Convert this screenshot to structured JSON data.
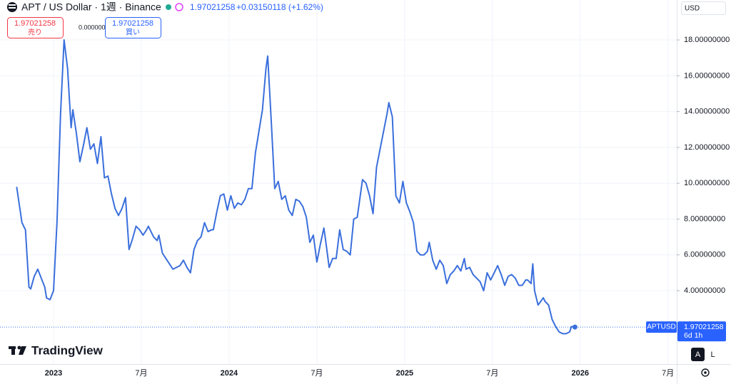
{
  "header": {
    "title": "APT / US Dollar · 1週 · Binance",
    "price": "1.97021258",
    "change": "+0.03150118 (+1.62%)",
    "sell_price": "1.97021258",
    "sell_label": "売り",
    "spread": "0.00000000",
    "buy_price": "1.97021258",
    "buy_label": "買い"
  },
  "toolbar": {
    "currency": "USD",
    "logo": "TradingView",
    "auto": "A",
    "log": "L"
  },
  "price_line": {
    "symbol": "APTUSD",
    "price": "1.97021258",
    "countdown": "6d 1h"
  },
  "chart_data": {
    "type": "line",
    "x": [
      2022.79,
      2022.82,
      2022.84,
      2022.86,
      2022.87,
      2022.89,
      2022.91,
      2022.93,
      2022.95,
      2022.96,
      2022.98,
      2023.0,
      2023.02,
      2023.04,
      2023.06,
      2023.08,
      2023.1,
      2023.11,
      2023.13,
      2023.15,
      2023.17,
      2023.19,
      2023.21,
      2023.23,
      2023.25,
      2023.27,
      2023.29,
      2023.31,
      2023.33,
      2023.35,
      2023.37,
      2023.39,
      2023.41,
      2023.43,
      2023.45,
      2023.47,
      2023.49,
      2023.51,
      2023.53,
      2023.54,
      2023.57,
      2023.59,
      2023.6,
      2023.62,
      2023.64,
      2023.66,
      2023.68,
      2023.7,
      2023.72,
      2023.74,
      2023.76,
      2023.78,
      2023.8,
      2023.82,
      2023.84,
      2023.86,
      2023.88,
      2023.9,
      2023.91,
      2023.93,
      2023.95,
      2023.97,
      2023.99,
      2024.01,
      2024.03,
      2024.05,
      2024.07,
      2024.09,
      2024.11,
      2024.13,
      2024.15,
      2024.17,
      2024.19,
      2024.21,
      2024.22,
      2024.24,
      2024.26,
      2024.28,
      2024.3,
      2024.32,
      2024.34,
      2024.36,
      2024.38,
      2024.4,
      2024.42,
      2024.44,
      2024.46,
      2024.48,
      2024.5,
      2024.52,
      2024.54,
      2024.55,
      2024.57,
      2024.59,
      2024.61,
      2024.63,
      2024.65,
      2024.67,
      2024.69,
      2024.71,
      2024.73,
      2024.74,
      2024.76,
      2024.78,
      2024.8,
      2024.82,
      2024.84,
      2024.86,
      2024.88,
      2024.9,
      2024.91,
      2024.93,
      2024.95,
      2024.97,
      2024.99,
      2025.01,
      2025.03,
      2025.05,
      2025.07,
      2025.09,
      2025.11,
      2025.13,
      2025.14,
      2025.16,
      2025.18,
      2025.2,
      2025.22,
      2025.24,
      2025.26,
      2025.28,
      2025.3,
      2025.32,
      2025.34,
      2025.35,
      2025.37,
      2025.39,
      2025.41,
      2025.43,
      2025.45,
      2025.47,
      2025.49,
      2025.51,
      2025.53,
      2025.55,
      2025.57,
      2025.59,
      2025.61,
      2025.63,
      2025.65,
      2025.67,
      2025.69,
      2025.7,
      2025.72,
      2025.73,
      2025.74,
      2025.76,
      2025.79,
      2025.8,
      2025.82,
      2025.84,
      2025.86,
      2025.88,
      2025.9,
      2025.92,
      2025.94,
      2025.95,
      2025.97
    ],
    "series": [
      {
        "name": "APTUSD",
        "color": "#3a6fdc",
        "values": [
          9.8,
          7.8,
          7.4,
          4.2,
          4.1,
          4.8,
          5.2,
          4.7,
          4.2,
          3.6,
          3.5,
          4.0,
          7.9,
          13.9,
          18.0,
          16.4,
          13.1,
          14.1,
          12.8,
          11.2,
          12.1,
          13.1,
          11.9,
          12.2,
          11.1,
          12.6,
          10.3,
          10.4,
          9.4,
          8.6,
          8.2,
          8.6,
          9.2,
          6.3,
          6.9,
          7.6,
          7.4,
          7.1,
          7.4,
          7.6,
          7.0,
          6.8,
          7.1,
          6.1,
          5.8,
          5.5,
          5.2,
          5.3,
          5.4,
          5.7,
          5.3,
          5.0,
          6.3,
          6.8,
          7.0,
          7.8,
          7.3,
          7.4,
          7.4,
          8.4,
          9.3,
          9.4,
          8.5,
          9.3,
          8.6,
          8.9,
          8.8,
          9.1,
          9.7,
          9.7,
          11.7,
          12.9,
          14.1,
          16.4,
          17.1,
          13.5,
          9.7,
          10.1,
          9.1,
          9.3,
          8.5,
          8.2,
          9.1,
          9.0,
          8.7,
          8.1,
          6.7,
          7.1,
          5.6,
          6.6,
          7.5,
          6.8,
          5.3,
          5.8,
          5.8,
          7.4,
          6.3,
          6.2,
          6.0,
          8.0,
          8.1,
          8.8,
          10.2,
          10.0,
          9.3,
          8.3,
          10.9,
          11.9,
          12.9,
          13.9,
          14.5,
          13.7,
          9.3,
          8.9,
          10.1,
          8.9,
          8.4,
          7.8,
          6.2,
          6.0,
          6.0,
          6.2,
          6.7,
          5.7,
          5.2,
          5.7,
          5.4,
          4.4,
          4.9,
          5.1,
          5.4,
          5.1,
          5.8,
          5.2,
          5.3,
          4.9,
          4.7,
          4.5,
          4.0,
          5.0,
          4.6,
          5.0,
          5.4,
          4.9,
          4.3,
          4.8,
          4.9,
          4.7,
          4.3,
          4.3,
          4.6,
          4.6,
          4.4,
          5.5,
          4.0,
          3.2,
          3.6,
          3.4,
          3.2,
          2.4,
          2.0,
          1.7,
          1.6,
          1.6,
          1.7,
          2.0,
          1.97021258
        ]
      }
    ],
    "xlim": [
      2022.695,
      2026.55
    ],
    "xticks": [
      {
        "value": 2023,
        "label": "2023"
      },
      {
        "value": 2023.5,
        "label": "7月"
      },
      {
        "value": 2024,
        "label": "2024"
      },
      {
        "value": 2024.5,
        "label": "7月"
      },
      {
        "value": 2025,
        "label": "2025"
      },
      {
        "value": 2025.5,
        "label": "7月"
      },
      {
        "value": 2026,
        "label": "2026"
      },
      {
        "value": 2026.5,
        "label": "7月"
      }
    ],
    "ylim": [
      0,
      20.23
    ],
    "yticks": [
      {
        "value": 4,
        "label": "4.00000000"
      },
      {
        "value": 6,
        "label": "6.00000000"
      },
      {
        "value": 8,
        "label": "8.00000000"
      },
      {
        "value": 10,
        "label": "10.00000000"
      },
      {
        "value": 12,
        "label": "12.00000000"
      },
      {
        "value": 14,
        "label": "14.00000000"
      },
      {
        "value": 16,
        "label": "16.00000000"
      },
      {
        "value": 18,
        "label": "18.00000000"
      }
    ],
    "grid": true
  }
}
